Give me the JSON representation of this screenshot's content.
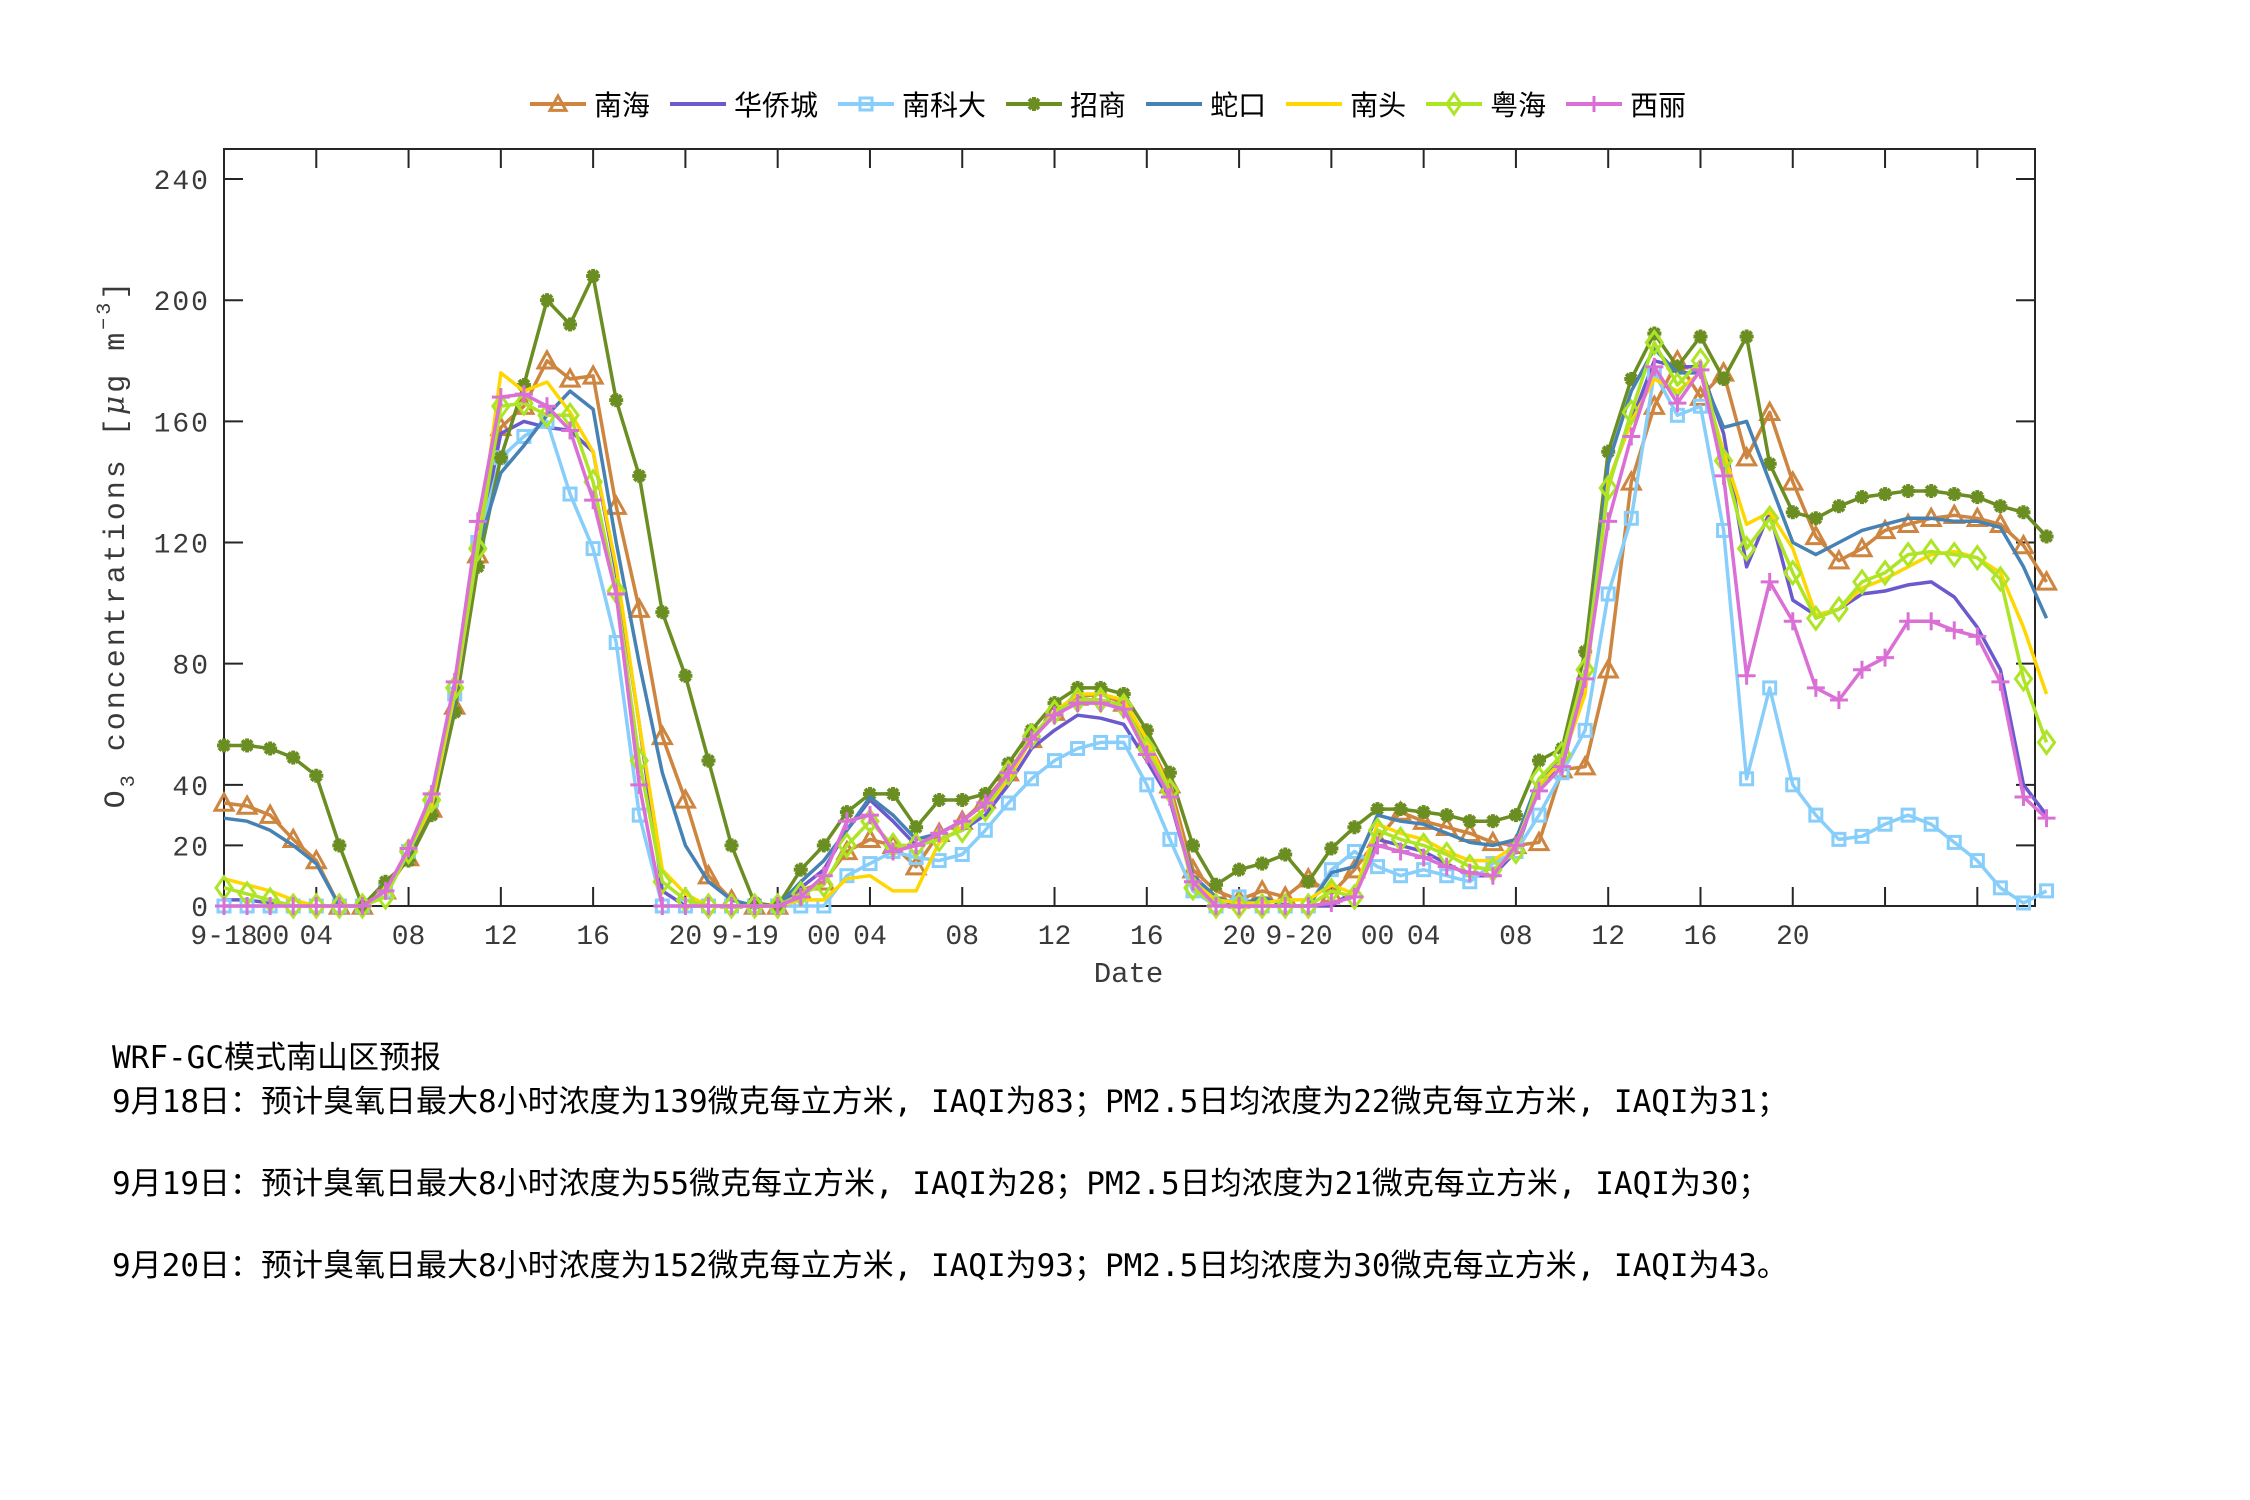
{
  "legend": [
    {
      "label": "南海",
      "color": "#CD853F",
      "marker": "triangle"
    },
    {
      "label": "华侨城",
      "color": "#6A5ACD",
      "marker": "none"
    },
    {
      "label": "南科大",
      "color": "#87CEFA",
      "marker": "square"
    },
    {
      "label": "招商",
      "color": "#6B8E23",
      "marker": "star"
    },
    {
      "label": "蛇口",
      "color": "#4682B4",
      "marker": "none"
    },
    {
      "label": "南头",
      "color": "#FFD700",
      "marker": "none"
    },
    {
      "label": "粤海",
      "color": "#ADE526",
      "marker": "diamond"
    },
    {
      "label": "西丽",
      "color": "#DA70D6",
      "marker": "plus"
    }
  ],
  "notes": {
    "title": "WRF-GC模式南山区预报",
    "lines": [
      "9月18日：预计臭氧日最大8小时浓度为139微克每立方米, IAQI为83；PM2.5日均浓度为22微克每立方米, IAQI为31；",
      "9月19日：预计臭氧日最大8小时浓度为55微克每立方米, IAQI为28；PM2.5日均浓度为21微克每立方米, IAQI为30；",
      "9月20日：预计臭氧日最大8小时浓度为152微克每立方米, IAQI为93；PM2.5日均浓度为30微克每立方米, IAQI为43。"
    ]
  },
  "chart_data": {
    "type": "line",
    "title": "",
    "xlabel": "Date",
    "ylabel": "O3 concentrations [μg m^-3]",
    "ylim": [
      0,
      250
    ],
    "yticks": [
      0,
      20,
      40,
      80,
      120,
      160,
      200,
      240
    ],
    "xlim": [
      0,
      78.5
    ],
    "x_unit": "hour index from 9-18 00",
    "xtick_marks": [
      4,
      8,
      12,
      16,
      20,
      24,
      28,
      32,
      36,
      40,
      44,
      48,
      52,
      56,
      60,
      64,
      68,
      72,
      76
    ],
    "xtick_labels": [
      {
        "pos": 0,
        "label": "9-18"
      },
      {
        "pos": 2.1,
        "label": "00"
      },
      {
        "pos": 4,
        "label": "04"
      },
      {
        "pos": 8,
        "label": "08"
      },
      {
        "pos": 12,
        "label": "12"
      },
      {
        "pos": 16,
        "label": "16"
      },
      {
        "pos": 20,
        "label": "20"
      },
      {
        "pos": 22.6,
        "label": "9-19"
      },
      {
        "pos": 26,
        "label": "00"
      },
      {
        "pos": 28,
        "label": "04"
      },
      {
        "pos": 32,
        "label": "08"
      },
      {
        "pos": 36,
        "label": "12"
      },
      {
        "pos": 40,
        "label": "16"
      },
      {
        "pos": 44,
        "label": "20"
      },
      {
        "pos": 46.6,
        "label": "9-20"
      },
      {
        "pos": 50,
        "label": "00"
      },
      {
        "pos": 52,
        "label": "04"
      },
      {
        "pos": 56,
        "label": "08"
      },
      {
        "pos": 60,
        "label": "12"
      },
      {
        "pos": 64,
        "label": "16"
      },
      {
        "pos": 68,
        "label": "20"
      }
    ],
    "grid": false,
    "legend_position": "top",
    "series": [
      {
        "name": "南海",
        "values": [
          34,
          33,
          30,
          22,
          15,
          0,
          0,
          5,
          16,
          32,
          66,
          116,
          158,
          165,
          180,
          174,
          175,
          132,
          98,
          56,
          35,
          10,
          2,
          0,
          0,
          5,
          8,
          18,
          22,
          20,
          13,
          24,
          28,
          35,
          44,
          55,
          64,
          69,
          70,
          67,
          55,
          40,
          12,
          5,
          2,
          5,
          3,
          9,
          4,
          12,
          22,
          31,
          28,
          26,
          24,
          21,
          20,
          21,
          45,
          46,
          78,
          140,
          165,
          180,
          168,
          176,
          148,
          163,
          140,
          122,
          114,
          118,
          124,
          126,
          128,
          129,
          128,
          126,
          119,
          107
        ]
      },
      {
        "name": "华侨城",
        "values": [
          2,
          2,
          1,
          0,
          0,
          0,
          0,
          5,
          18,
          34,
          68,
          118,
          156,
          160,
          158,
          157,
          150,
          110,
          60,
          5,
          0,
          0,
          0,
          0,
          0,
          6,
          12,
          25,
          35,
          28,
          20,
          22,
          25,
          30,
          40,
          52,
          58,
          63,
          62,
          60,
          48,
          35,
          8,
          2,
          0,
          0,
          0,
          0,
          0,
          5,
          22,
          20,
          18,
          14,
          10,
          10,
          18,
          40,
          46,
          74,
          140,
          160,
          180,
          178,
          178,
          156,
          112,
          130,
          101,
          96,
          98,
          103,
          104,
          106,
          107,
          102,
          92,
          78,
          40,
          30
        ]
      },
      {
        "name": "南科大",
        "values": [
          0,
          0,
          0,
          0,
          0,
          0,
          0,
          5,
          18,
          35,
          70,
          120,
          148,
          155,
          160,
          136,
          118,
          87,
          30,
          0,
          0,
          0,
          0,
          0,
          0,
          0,
          0,
          10,
          14,
          18,
          16,
          15,
          17,
          25,
          34,
          42,
          48,
          52,
          54,
          54,
          40,
          22,
          5,
          0,
          3,
          0,
          0,
          0,
          12,
          18,
          13,
          10,
          12,
          10,
          8,
          14,
          18,
          30,
          44,
          58,
          103,
          128,
          176,
          162,
          165,
          124,
          42,
          72,
          40,
          30,
          22,
          23,
          27,
          30,
          27,
          21,
          15,
          6,
          1,
          5
        ]
      },
      {
        "name": "招商",
        "values": [
          53,
          53,
          52,
          49,
          43,
          20,
          0,
          8,
          15,
          30,
          64,
          112,
          148,
          172,
          200,
          192,
          208,
          167,
          142,
          97,
          76,
          48,
          20,
          1,
          0,
          12,
          20,
          31,
          37,
          37,
          26,
          35,
          35,
          37,
          47,
          58,
          67,
          72,
          72,
          70,
          58,
          44,
          20,
          7,
          12,
          14,
          17,
          8,
          19,
          26,
          32,
          32,
          31,
          30,
          28,
          28,
          30,
          48,
          52,
          84,
          150,
          174,
          189,
          178,
          188,
          174,
          188,
          146,
          130,
          128,
          132,
          135,
          136,
          137,
          137,
          136,
          135,
          132,
          130,
          122
        ]
      },
      {
        "name": "蛇口",
        "values": [
          29,
          28,
          25,
          20,
          14,
          0,
          0,
          5,
          17,
          33,
          68,
          118,
          143,
          152,
          162,
          170,
          164,
          120,
          80,
          44,
          20,
          8,
          2,
          0,
          0,
          8,
          15,
          25,
          36,
          30,
          22,
          24,
          28,
          34,
          44,
          55,
          63,
          68,
          68,
          66,
          52,
          36,
          10,
          3,
          0,
          3,
          0,
          0,
          11,
          13,
          30,
          28,
          27,
          24,
          21,
          20,
          22,
          42,
          48,
          76,
          146,
          170,
          184,
          176,
          176,
          158,
          160,
          140,
          120,
          116,
          120,
          124,
          126,
          128,
          128,
          127,
          127,
          125,
          112,
          95
        ]
      },
      {
        "name": "南头",
        "values": [
          9,
          7,
          5,
          2,
          0,
          0,
          0,
          5,
          18,
          33,
          70,
          118,
          176,
          170,
          173,
          163,
          150,
          112,
          60,
          12,
          4,
          0,
          0,
          0,
          0,
          2,
          2,
          9,
          10,
          5,
          5,
          21,
          26,
          32,
          42,
          55,
          64,
          70,
          70,
          68,
          55,
          38,
          8,
          2,
          1,
          1,
          2,
          2,
          7,
          4,
          27,
          24,
          22,
          18,
          15,
          15,
          20,
          40,
          48,
          70,
          140,
          160,
          174,
          170,
          176,
          150,
          126,
          130,
          118,
          96,
          98,
          105,
          108,
          112,
          116,
          117,
          115,
          110,
          92,
          70
        ]
      },
      {
        "name": "粤海",
        "values": [
          6,
          4,
          2,
          0,
          0,
          0,
          0,
          3,
          18,
          35,
          72,
          118,
          165,
          166,
          162,
          162,
          140,
          104,
          48,
          8,
          2,
          0,
          0,
          0,
          0,
          4,
          7,
          20,
          28,
          20,
          20,
          22,
          25,
          32,
          44,
          56,
          64,
          68,
          68,
          66,
          52,
          38,
          6,
          0,
          0,
          0,
          0,
          0,
          5,
          3,
          25,
          22,
          20,
          17,
          13,
          12,
          18,
          42,
          50,
          78,
          138,
          163,
          186,
          172,
          180,
          147,
          118,
          128,
          110,
          95,
          98,
          107,
          110,
          116,
          117,
          116,
          115,
          108,
          75,
          54
        ]
      },
      {
        "name": "西丽",
        "values": [
          0,
          0,
          0,
          0,
          0,
          0,
          0,
          5,
          19,
          37,
          74,
          127,
          168,
          169,
          165,
          157,
          134,
          103,
          40,
          0,
          0,
          0,
          0,
          0,
          0,
          3,
          10,
          28,
          30,
          18,
          20,
          24,
          28,
          34,
          44,
          55,
          63,
          67,
          67,
          65,
          50,
          36,
          8,
          0,
          0,
          0,
          0,
          0,
          1,
          3,
          20,
          18,
          16,
          13,
          11,
          10,
          20,
          38,
          46,
          75,
          127,
          155,
          178,
          166,
          177,
          142,
          76,
          107,
          94,
          72,
          68,
          78,
          82,
          94,
          94,
          91,
          89,
          74,
          36,
          29
        ]
      }
    ]
  }
}
